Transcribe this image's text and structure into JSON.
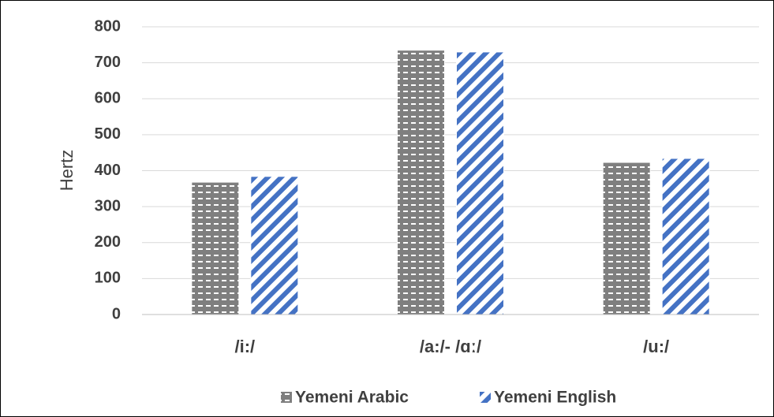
{
  "chart_data": {
    "type": "bar",
    "y_label": "Hertz",
    "categories": [
      "/i:/",
      "/a:/- /ɑː/",
      "/u:/"
    ],
    "series": [
      {
        "name": "Yemeni Arabic",
        "color": "#7f7f7f",
        "values": [
          368,
          735,
          423
        ]
      },
      {
        "name": "Yemeni English",
        "color": "#4472c4",
        "values": [
          384,
          730,
          434
        ]
      }
    ],
    "ylim": [
      0,
      800
    ],
    "yticks": [
      0,
      100,
      200,
      300,
      400,
      500,
      600,
      700,
      800
    ],
    "grid": true,
    "legend": "bottom"
  }
}
